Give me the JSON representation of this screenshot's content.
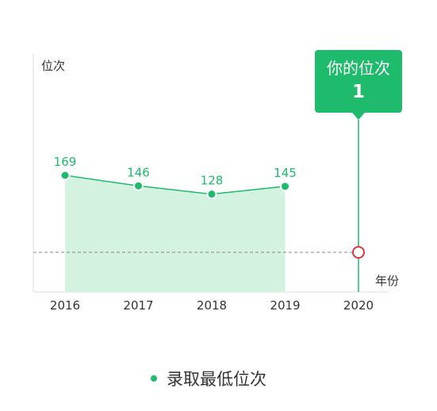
{
  "colors": {
    "accent": "#1dbb6b",
    "area_fill": "#d3f2e0",
    "marker_ring": "#d9363e",
    "axis": "#dddddd",
    "reference_line": "#888888",
    "text": "#333333"
  },
  "chart_data": {
    "type": "line",
    "ylabel": "位次",
    "xlabel": "年份",
    "categories": [
      "2016",
      "2017",
      "2018",
      "2019",
      "2020"
    ],
    "series": [
      {
        "name": "录取最低位次",
        "values": [
          169,
          146,
          128,
          145,
          null
        ]
      }
    ],
    "reference_line": {
      "value": 1,
      "label_title": "你的位次",
      "label_value": "1",
      "at_category": "2020"
    },
    "area_fill": true,
    "grid": false,
    "legend_position": "bottom"
  },
  "legend": {
    "label": "录取最低位次"
  }
}
